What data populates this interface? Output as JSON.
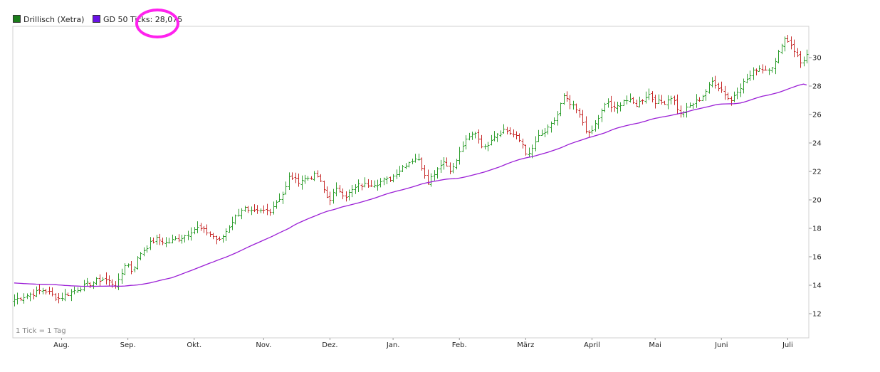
{
  "legend": {
    "price_label": "Drillisch (Xetra)",
    "ma_label": "GD 50 Ticks: 28,075"
  },
  "colors": {
    "up": "#2e9e2e",
    "down": "#c62828",
    "moving_average": "#9b1fd6",
    "highlight": "#ff22ee",
    "price_swatch": "#1a7d1a",
    "ma_swatch": "#6a12e6"
  },
  "chart_data": {
    "type": "ohlc",
    "title": "",
    "ylabel": "",
    "ylim": [
      10.3,
      32.2
    ],
    "yticks": [
      12,
      14,
      16,
      18,
      20,
      22,
      24,
      26,
      28,
      30
    ],
    "grid": false,
    "legend_position": "top-left",
    "note": "1 Tick = 1 Tag",
    "month_labels": [
      "Aug.",
      "Sep.",
      "Okt.",
      "Nov.",
      "Dez.",
      "Jan.",
      "Feb.",
      "März",
      "April",
      "Mai",
      "Juni",
      "Juli"
    ],
    "month_label_day_index": [
      15,
      36,
      57,
      79,
      100,
      120,
      141,
      162,
      183,
      203,
      224,
      245
    ],
    "trading_days": 252,
    "close_anchors": [
      [
        0,
        13.0
      ],
      [
        10,
        13.7
      ],
      [
        15,
        13.1
      ],
      [
        17,
        13.3
      ],
      [
        24,
        14.0
      ],
      [
        30,
        14.5
      ],
      [
        35,
        14.0
      ],
      [
        38,
        15.7
      ],
      [
        40,
        15.0
      ],
      [
        43,
        16.3
      ],
      [
        48,
        17.3
      ],
      [
        52,
        17.0
      ],
      [
        58,
        17.5
      ],
      [
        62,
        18.1
      ],
      [
        67,
        17.6
      ],
      [
        70,
        17.1
      ],
      [
        74,
        18.5
      ],
      [
        78,
        19.5
      ],
      [
        80,
        19.1
      ],
      [
        87,
        19.3
      ],
      [
        92,
        20.6
      ],
      [
        94,
        21.8
      ],
      [
        96,
        21.3
      ],
      [
        103,
        21.8
      ],
      [
        107,
        20.0
      ],
      [
        110,
        20.8
      ],
      [
        113,
        20.3
      ],
      [
        117,
        21.0
      ],
      [
        123,
        21.2
      ],
      [
        128,
        21.5
      ],
      [
        133,
        22.5
      ],
      [
        137,
        23.0
      ],
      [
        139,
        22.3
      ],
      [
        141,
        21.3
      ],
      [
        146,
        22.8
      ],
      [
        149,
        22.0
      ],
      [
        153,
        24.0
      ],
      [
        157,
        24.8
      ],
      [
        160,
        23.6
      ],
      [
        163,
        24.5
      ],
      [
        167,
        25.0
      ],
      [
        170,
        24.6
      ],
      [
        173,
        24.0
      ],
      [
        175,
        23.0
      ],
      [
        178,
        24.3
      ],
      [
        182,
        25.0
      ],
      [
        185,
        26.0
      ],
      [
        187,
        27.3
      ],
      [
        189,
        26.8
      ],
      [
        192,
        26.2
      ],
      [
        194,
        25.3
      ],
      [
        196,
        24.5
      ],
      [
        199,
        25.8
      ],
      [
        202,
        27.0
      ],
      [
        204,
        26.3
      ],
      [
        208,
        27.1
      ],
      [
        212,
        26.7
      ],
      [
        216,
        27.5
      ],
      [
        218,
        27.0
      ],
      [
        221,
        26.8
      ],
      [
        224,
        27.3
      ],
      [
        227,
        26.0
      ],
      [
        230,
        26.6
      ],
      [
        234,
        27.2
      ],
      [
        238,
        28.4
      ],
      [
        242,
        27.5
      ],
      [
        244,
        26.9
      ],
      [
        246,
        27.7
      ],
      [
        250,
        28.6
      ],
      [
        253,
        29.3
      ],
      [
        256,
        29.2
      ],
      [
        259,
        29.5
      ],
      [
        262,
        31.4
      ],
      [
        264,
        31.2
      ],
      [
        266,
        30.4
      ],
      [
        268,
        29.6
      ],
      [
        270,
        30.2
      ]
    ],
    "series": [
      {
        "name": "Drillisch (Xetra)",
        "type": "ohlc"
      },
      {
        "name": "GD 50 Ticks: 28,075",
        "type": "line",
        "last_value": 28.075
      }
    ]
  }
}
